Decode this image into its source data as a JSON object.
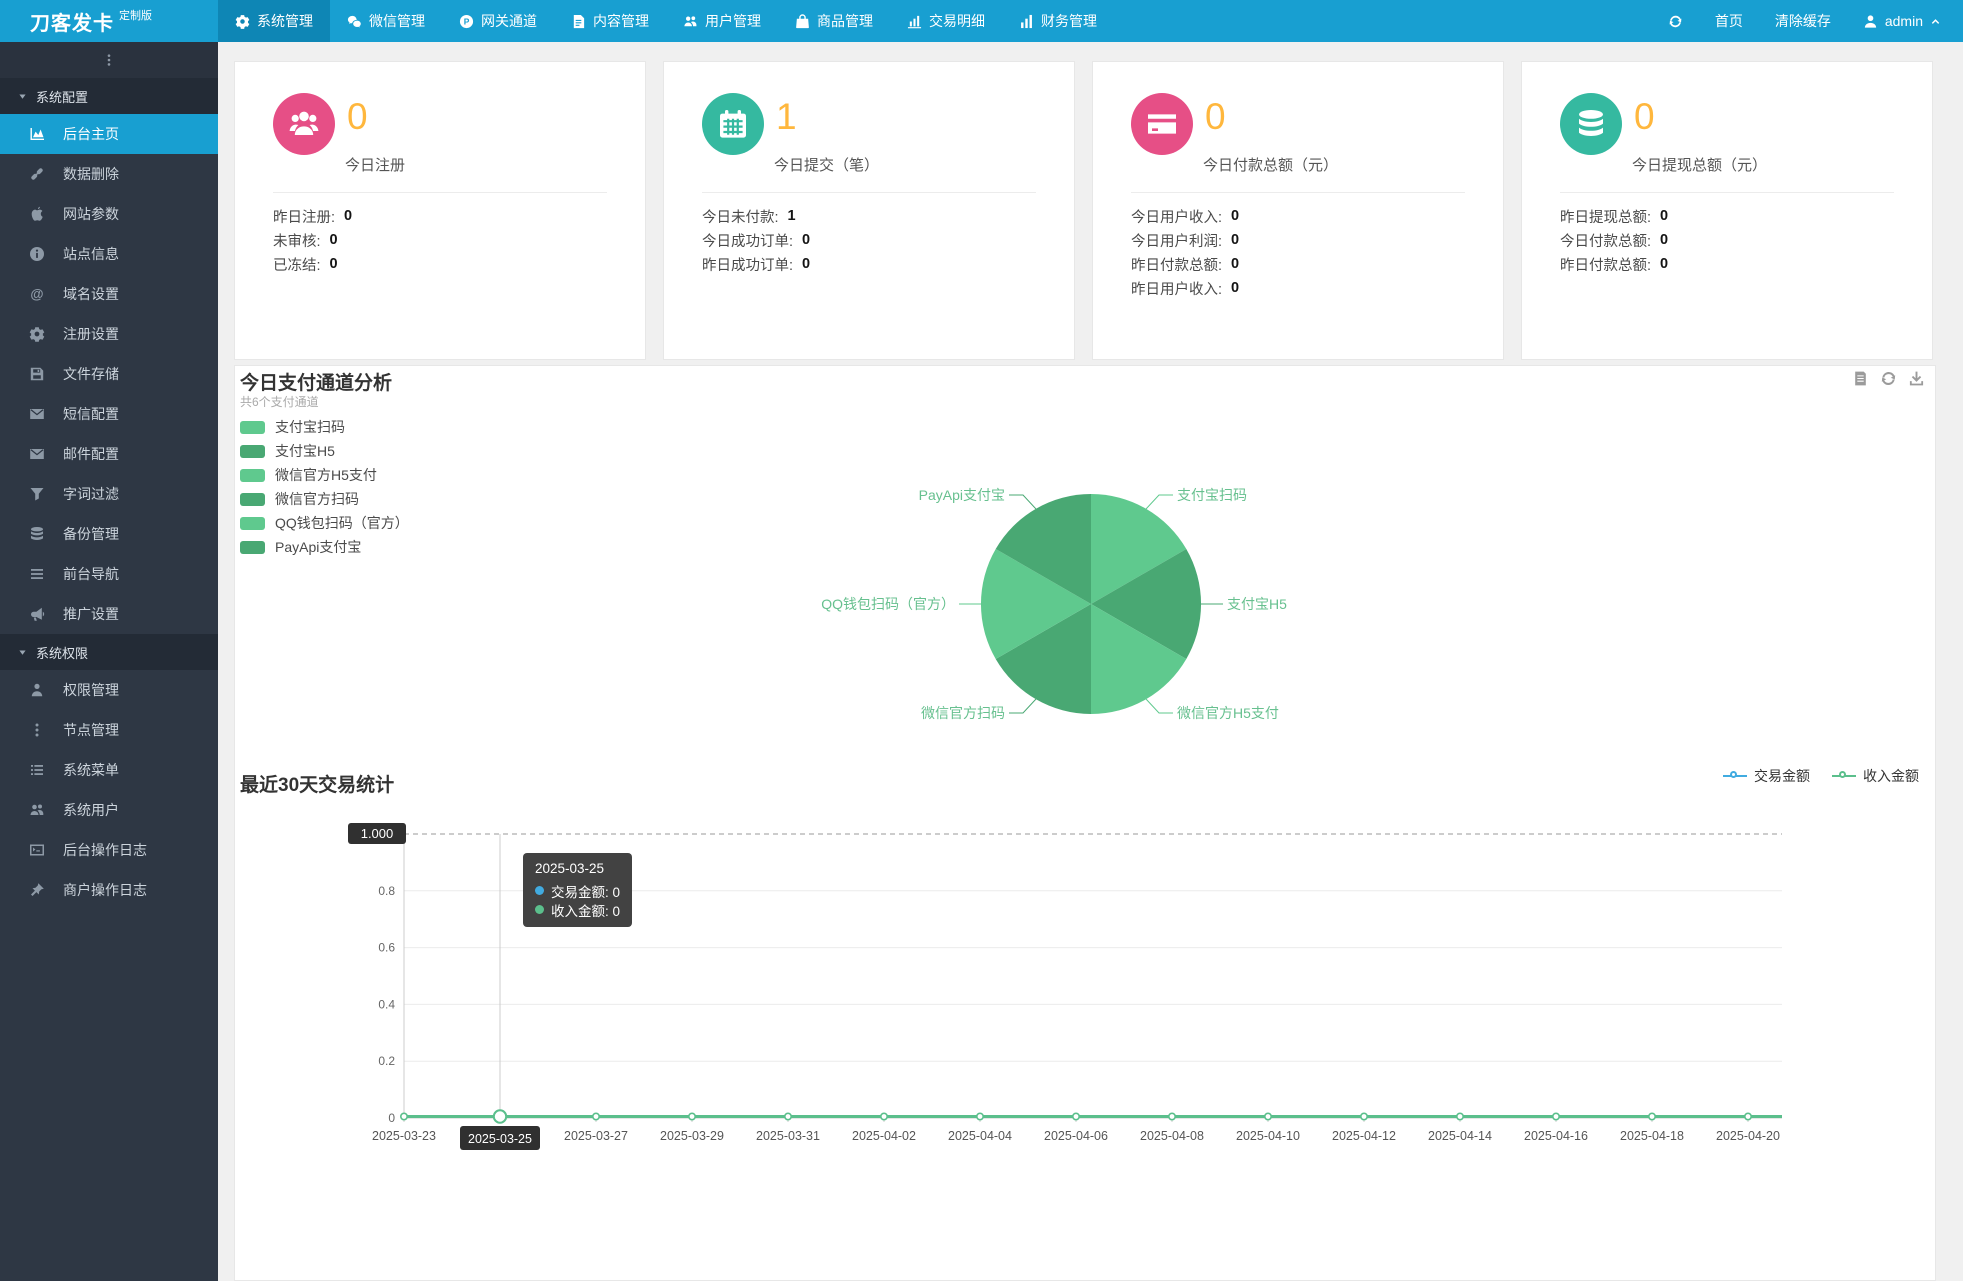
{
  "brand": {
    "name": "刀客发卡",
    "badge": "定制版"
  },
  "navbar": {
    "items": [
      {
        "key": "system",
        "label": "系统管理",
        "icon": "gear",
        "active": true
      },
      {
        "key": "wechat",
        "label": "微信管理",
        "icon": "wechat",
        "active": false
      },
      {
        "key": "gateway",
        "label": "网关通道",
        "icon": "gateway",
        "active": false
      },
      {
        "key": "content",
        "label": "内容管理",
        "icon": "doc",
        "active": false
      },
      {
        "key": "user",
        "label": "用户管理",
        "icon": "users",
        "active": false
      },
      {
        "key": "product",
        "label": "商品管理",
        "icon": "bag",
        "active": false
      },
      {
        "key": "transactions",
        "label": "交易明细",
        "icon": "chart-bars",
        "active": false
      },
      {
        "key": "finance",
        "label": "财务管理",
        "icon": "finance",
        "active": false
      }
    ],
    "home": "首页",
    "clear_cache": "清除缓存",
    "username": "admin"
  },
  "sidebar": {
    "sections": [
      {
        "title": "系统配置",
        "items": [
          {
            "key": "dashboard",
            "label": "后台主页",
            "icon": "dashboard",
            "active": true
          },
          {
            "key": "data-delete",
            "label": "数据删除",
            "icon": "link",
            "active": false
          },
          {
            "key": "site-params",
            "label": "网站参数",
            "icon": "apple",
            "active": false
          },
          {
            "key": "site-info",
            "label": "站点信息",
            "icon": "info",
            "active": false
          },
          {
            "key": "domain",
            "label": "域名设置",
            "icon": "at",
            "active": false
          },
          {
            "key": "register",
            "label": "注册设置",
            "icon": "gear",
            "active": false
          },
          {
            "key": "file-storage",
            "label": "文件存储",
            "icon": "floppy",
            "active": false
          },
          {
            "key": "sms",
            "label": "短信配置",
            "icon": "envelope",
            "active": false
          },
          {
            "key": "mail",
            "label": "邮件配置",
            "icon": "envelope",
            "active": false
          },
          {
            "key": "word-filter",
            "label": "字词过滤",
            "icon": "funnel",
            "active": false
          },
          {
            "key": "backup",
            "label": "备份管理",
            "icon": "database",
            "active": false
          },
          {
            "key": "front-nav",
            "label": "前台导航",
            "icon": "bars",
            "active": false
          },
          {
            "key": "promotion",
            "label": "推广设置",
            "icon": "megaphone",
            "active": false
          }
        ]
      },
      {
        "title": "系统权限",
        "items": [
          {
            "key": "permission",
            "label": "权限管理",
            "icon": "person",
            "active": false
          },
          {
            "key": "node",
            "label": "节点管理",
            "icon": "dots-v",
            "active": false
          },
          {
            "key": "system-menu",
            "label": "系统菜单",
            "icon": "list",
            "active": false
          },
          {
            "key": "system-users",
            "label": "系统用户",
            "icon": "users",
            "active": false
          },
          {
            "key": "admin-log",
            "label": "后台操作日志",
            "icon": "terminal",
            "active": false
          },
          {
            "key": "merchant-log",
            "label": "商户操作日志",
            "icon": "pin",
            "active": false
          }
        ]
      }
    ]
  },
  "stat_cards": [
    {
      "key": "register-today",
      "icon": "users-group",
      "icon_bg": "#e64f86",
      "value": "0",
      "label": "今日注册",
      "rows": [
        {
          "label": "昨日注册",
          "value": "0"
        },
        {
          "label": "未审核",
          "value": "0"
        },
        {
          "label": "已冻结",
          "value": "0"
        }
      ]
    },
    {
      "key": "submit-today",
      "icon": "calendar",
      "icon_bg": "#35b9a0",
      "value": "1",
      "label": "今日提交（笔）",
      "rows": [
        {
          "label": "今日未付款",
          "value": "1"
        },
        {
          "label": "今日成功订单",
          "value": "0"
        },
        {
          "label": "昨日成功订单",
          "value": "0"
        }
      ]
    },
    {
      "key": "paid-today",
      "icon": "credit-card",
      "icon_bg": "#e64f86",
      "value": "0",
      "label": "今日付款总额（元）",
      "rows": [
        {
          "label": "今日用户收入",
          "value": "0"
        },
        {
          "label": "今日用户利润",
          "value": "0"
        },
        {
          "label": "昨日付款总额",
          "value": "0"
        },
        {
          "label": "昨日用户收入",
          "value": "0"
        }
      ]
    },
    {
      "key": "withdraw-today",
      "icon": "database",
      "icon_bg": "#35b9a0",
      "value": "0",
      "label": "今日提现总额（元）",
      "rows": [
        {
          "label": "昨日提现总额",
          "value": "0"
        },
        {
          "label": "今日付款总额",
          "value": "0"
        },
        {
          "label": "昨日付款总额",
          "value": "0"
        }
      ]
    }
  ],
  "colors": {
    "accent_orange": "#ffb73d",
    "pink": "#e64f86",
    "teal": "#35b9a0",
    "navbar_blue": "#189fd1"
  },
  "chart_data": [
    {
      "type": "pie",
      "title": "今日支付通道分析",
      "subtitle": "共6个支付通道",
      "legend_position": "left",
      "slices": [
        {
          "label": "支付宝扫码",
          "value": 1,
          "color": "#5fc98e"
        },
        {
          "label": "支付宝H5",
          "value": 1,
          "color": "#49a873"
        },
        {
          "label": "微信官方H5支付",
          "value": 1,
          "color": "#5fc98e"
        },
        {
          "label": "微信官方扫码",
          "value": 1,
          "color": "#49a873"
        },
        {
          "label": "QQ钱包扫码（官方）",
          "value": 1,
          "color": "#5fc98e"
        },
        {
          "label": "PayApi支付宝",
          "value": 1,
          "color": "#49a873"
        }
      ]
    },
    {
      "type": "line",
      "title": "最近30天交易统计",
      "x_labels": [
        "2025-03-23",
        "2025-03-25",
        "2025-03-27",
        "2025-03-29",
        "2025-03-31",
        "2025-04-02",
        "2025-04-04",
        "2025-04-06",
        "2025-04-08",
        "2025-04-10",
        "2025-04-12",
        "2025-04-14",
        "2025-04-16",
        "2025-04-18",
        "2025-04-20"
      ],
      "series": [
        {
          "name": "交易金额",
          "color": "#41abe0",
          "values": [
            0,
            0,
            0,
            0,
            0,
            0,
            0,
            0,
            0,
            0,
            0,
            0,
            0,
            0,
            0
          ]
        },
        {
          "name": "收入金额",
          "color": "#5bbf8c",
          "values": [
            0,
            0,
            0,
            0,
            0,
            0,
            0,
            0,
            0,
            0,
            0,
            0,
            0,
            0,
            0
          ]
        }
      ],
      "ylim": [
        0,
        1
      ],
      "y_ticks": [
        "0",
        "0.2",
        "0.4",
        "0.6",
        "0.8"
      ],
      "grid": true,
      "legend_position": "top-right",
      "axis_pointer": {
        "y_label": "1.000",
        "x_label": "2025-03-25",
        "x_index": 1
      },
      "tooltip": {
        "title": "2025-03-25",
        "rows": [
          {
            "name": "交易金额",
            "value": "0"
          },
          {
            "name": "收入金额",
            "value": "0"
          }
        ]
      }
    }
  ]
}
